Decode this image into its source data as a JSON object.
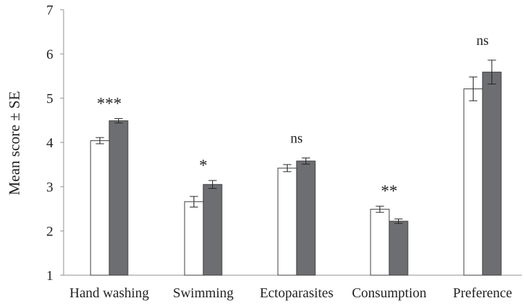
{
  "chart_data": {
    "type": "bar",
    "title": "",
    "xlabel": "",
    "ylabel": "Mean score ± SE",
    "ylim": [
      1,
      7
    ],
    "yticks": [
      1,
      2,
      3,
      4,
      5,
      6,
      7
    ],
    "grid": false,
    "legend": "none",
    "categories": [
      "Hand washing",
      "Swimming",
      "Ectoparasites",
      "Consumption",
      "Preference"
    ],
    "significance": [
      "***",
      "*",
      "ns",
      "**",
      "ns"
    ],
    "series": [
      {
        "color": "#ffffff",
        "values": [
          4.04,
          2.66,
          3.42,
          2.49,
          5.21
        ],
        "errors": [
          0.07,
          0.12,
          0.08,
          0.07,
          0.27
        ]
      },
      {
        "color": "#6d6e71",
        "values": [
          4.49,
          3.05,
          3.58,
          2.22,
          5.59
        ],
        "errors": [
          0.05,
          0.09,
          0.07,
          0.05,
          0.27
        ]
      }
    ]
  }
}
